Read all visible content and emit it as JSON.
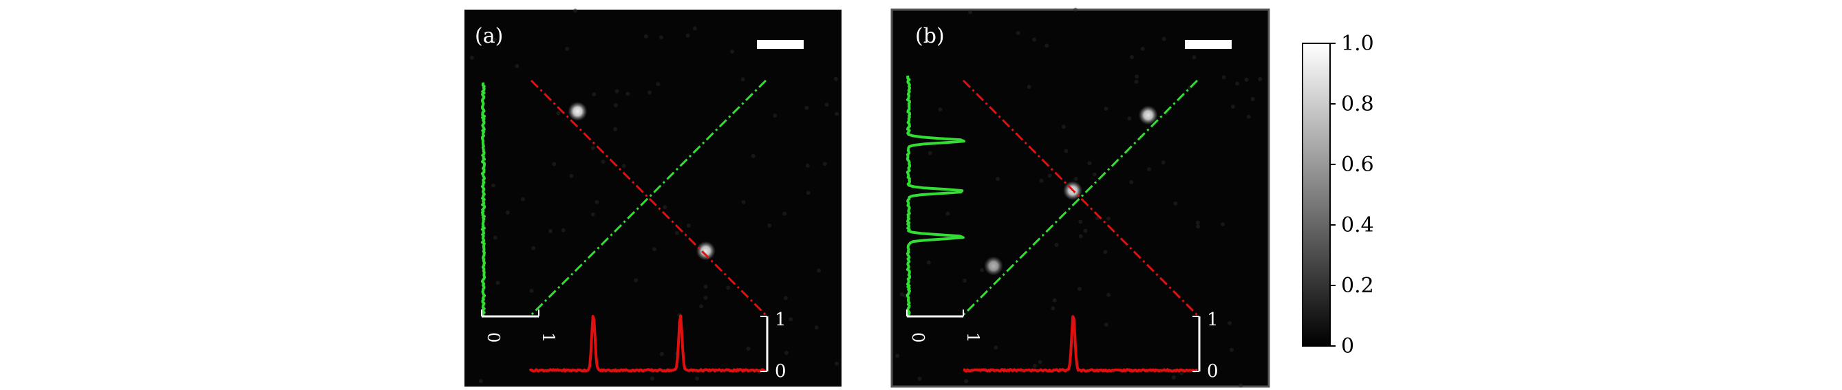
{
  "panels": [
    {
      "label": "(a)",
      "profiles": {
        "vertical_green": {
          "axis_ticks": [
            "0",
            "1"
          ],
          "peaks": []
        },
        "horizontal_red": {
          "axis_ticks": [
            "0",
            "1"
          ],
          "peaks": [
            0.27,
            0.64
          ]
        }
      },
      "spots": [
        {
          "u": 0.3,
          "v": 0.27,
          "intensity": 0.95
        },
        {
          "u": 0.64,
          "v": 0.64,
          "intensity": 0.9
        }
      ]
    },
    {
      "label": "(b)",
      "profiles": {
        "vertical_green": {
          "axis_ticks": [
            "0",
            "1"
          ],
          "peaks": [
            0.27,
            0.48,
            0.67
          ]
        },
        "horizontal_red": {
          "axis_ticks": [
            "0",
            "1"
          ],
          "peaks": [
            0.47
          ]
        }
      },
      "spots": [
        {
          "u": 0.68,
          "v": 0.28,
          "intensity": 0.9
        },
        {
          "u": 0.48,
          "v": 0.48,
          "intensity": 0.9
        },
        {
          "u": 0.27,
          "v": 0.68,
          "intensity": 0.7
        }
      ]
    }
  ],
  "colorbar": {
    "ticks": [
      "1.0",
      "0.8",
      "0.6",
      "0.4",
      "0.2",
      "0"
    ],
    "tick_values": [
      1.0,
      0.8,
      0.6,
      0.4,
      0.2,
      0
    ],
    "range": [
      0,
      1
    ]
  },
  "colors": {
    "red_line": "#e01010",
    "green_line": "#33dd33",
    "image_bg": "#050505"
  }
}
